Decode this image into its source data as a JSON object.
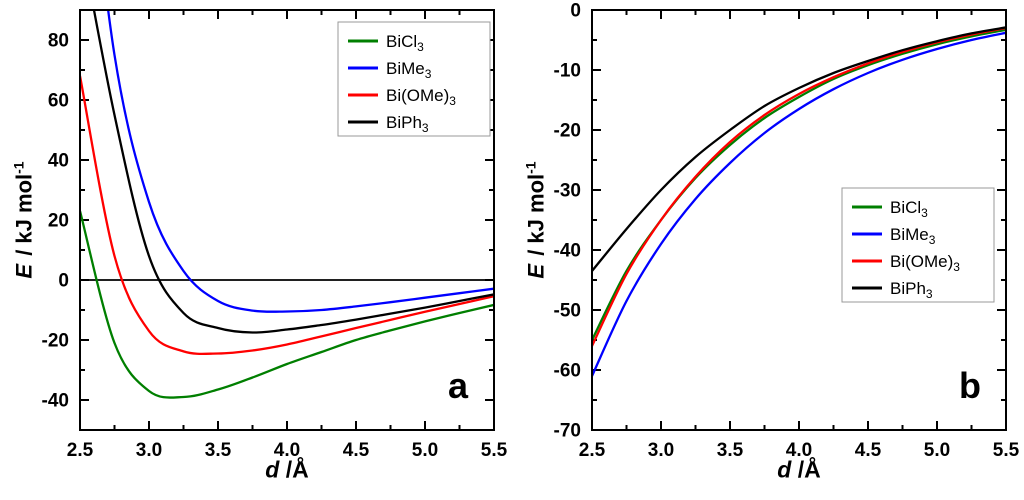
{
  "chart_data": [
    {
      "type": "line",
      "panel_label": "a",
      "x_label": {
        "var": "d",
        "rest": " /Å"
      },
      "y_label": {
        "var": "E",
        "mid": " / kJ mol",
        "sup": "-1"
      },
      "xlim": [
        2.5,
        5.5
      ],
      "ylim": [
        -50,
        90
      ],
      "x": [
        2.5,
        2.75,
        3.0,
        3.25,
        3.5,
        3.75,
        4.0,
        4.25,
        4.5,
        4.75,
        5.0,
        5.25,
        5.5
      ],
      "x_tick_values": [
        2.5,
        3.0,
        3.5,
        4.0,
        4.5,
        5.0,
        5.5
      ],
      "x_tick_labels": [
        "2.5",
        "3.0",
        "3.5",
        "4.0",
        "4.5",
        "5.0",
        "5.5"
      ],
      "x_minor_ticks": [
        2.75,
        3.25,
        3.75,
        4.25,
        4.75,
        5.25
      ],
      "y_tick_values": [
        80,
        60,
        40,
        20,
        0,
        -20,
        -40
      ],
      "y_tick_labels": [
        "80",
        "60",
        "40",
        "20",
        "0",
        "-20",
        "-40"
      ],
      "y_minor_ticks": [
        70,
        50,
        30,
        10,
        -10,
        -30
      ],
      "zero_line": true,
      "grid": false,
      "legend": {
        "position": "top-right",
        "border_color": "#999999"
      },
      "series": [
        {
          "name": "BiCl",
          "sub": "3",
          "color": "#007F00",
          "values": [
            23,
            -21,
            -37,
            -39,
            -36.5,
            -32.5,
            -28,
            -24,
            -20,
            -16.8,
            -13.8,
            -11,
            -8.3
          ]
        },
        {
          "name": "BiMe",
          "sub": "3",
          "color": "#0000FF",
          "values": [
            170,
            75,
            26,
            3,
            -7,
            -10.2,
            -10.5,
            -10,
            -8.8,
            -7.4,
            -5.9,
            -4.4,
            -2.9
          ]
        },
        {
          "name": "Bi(OMe)",
          "sub": "3",
          "color": "#FF0000",
          "values": [
            68,
            8,
            -17,
            -23.8,
            -24.5,
            -23.5,
            -21.5,
            -18.8,
            -16,
            -13.3,
            -10.6,
            -8,
            -5.4
          ]
        },
        {
          "name": "BiPh",
          "sub": "3",
          "color": "#000000",
          "values": [
            115,
            55,
            8,
            -11,
            -16,
            -17.5,
            -16.5,
            -15,
            -13.2,
            -11.2,
            -9.2,
            -7,
            -4.8
          ]
        }
      ]
    },
    {
      "type": "line",
      "panel_label": "b",
      "x_label": {
        "var": "d",
        "rest": " /Å"
      },
      "y_label": {
        "var": "E",
        "mid": " / kJ mol",
        "sup": "-1"
      },
      "xlim": [
        2.5,
        5.5
      ],
      "ylim": [
        -70,
        0
      ],
      "x": [
        2.5,
        2.75,
        3.0,
        3.25,
        3.5,
        3.75,
        4.0,
        4.25,
        4.5,
        4.75,
        5.0,
        5.25,
        5.5
      ],
      "x_tick_values": [
        2.5,
        3.0,
        3.5,
        4.0,
        4.5,
        5.0,
        5.5
      ],
      "x_tick_labels": [
        "2.5",
        "3.0",
        "3.5",
        "4.0",
        "4.5",
        "5.0",
        "5.5"
      ],
      "x_minor_ticks": [
        2.75,
        3.25,
        3.75,
        4.25,
        4.75,
        5.25
      ],
      "y_tick_values": [
        0,
        -10,
        -20,
        -30,
        -40,
        -50,
        -60,
        -70
      ],
      "y_tick_labels": [
        "0",
        "-10",
        "-20",
        "-30",
        "-40",
        "-50",
        "-60",
        "-70"
      ],
      "y_minor_ticks": [
        -5,
        -15,
        -25,
        -35,
        -45,
        -55,
        -65
      ],
      "zero_line": false,
      "grid": false,
      "legend": {
        "position": "middle-right",
        "border_color": "#999999"
      },
      "series": [
        {
          "name": "BiCl",
          "sub": "3",
          "color": "#007F00",
          "values": [
            -55,
            -43.5,
            -35,
            -28,
            -22.5,
            -18,
            -14.5,
            -11.5,
            -9.2,
            -7.3,
            -5.7,
            -4.4,
            -3.3
          ]
        },
        {
          "name": "BiMe",
          "sub": "3",
          "color": "#0000FF",
          "values": [
            -61,
            -48.5,
            -39,
            -31.5,
            -25.5,
            -20.5,
            -16.5,
            -13.2,
            -10.5,
            -8.3,
            -6.5,
            -5,
            -3.8
          ]
        },
        {
          "name": "Bi(OMe)",
          "sub": "3",
          "color": "#FF0000",
          "values": [
            -56,
            -44,
            -35,
            -27.8,
            -22,
            -17.5,
            -14,
            -11.2,
            -8.9,
            -7,
            -5.4,
            -4.1,
            -3.0
          ]
        },
        {
          "name": "BiPh",
          "sub": "3",
          "color": "#000000",
          "values": [
            -43.5,
            -36.5,
            -30,
            -24.5,
            -20,
            -16,
            -13,
            -10.5,
            -8.5,
            -6.7,
            -5.2,
            -3.9,
            -2.9
          ]
        }
      ]
    }
  ]
}
